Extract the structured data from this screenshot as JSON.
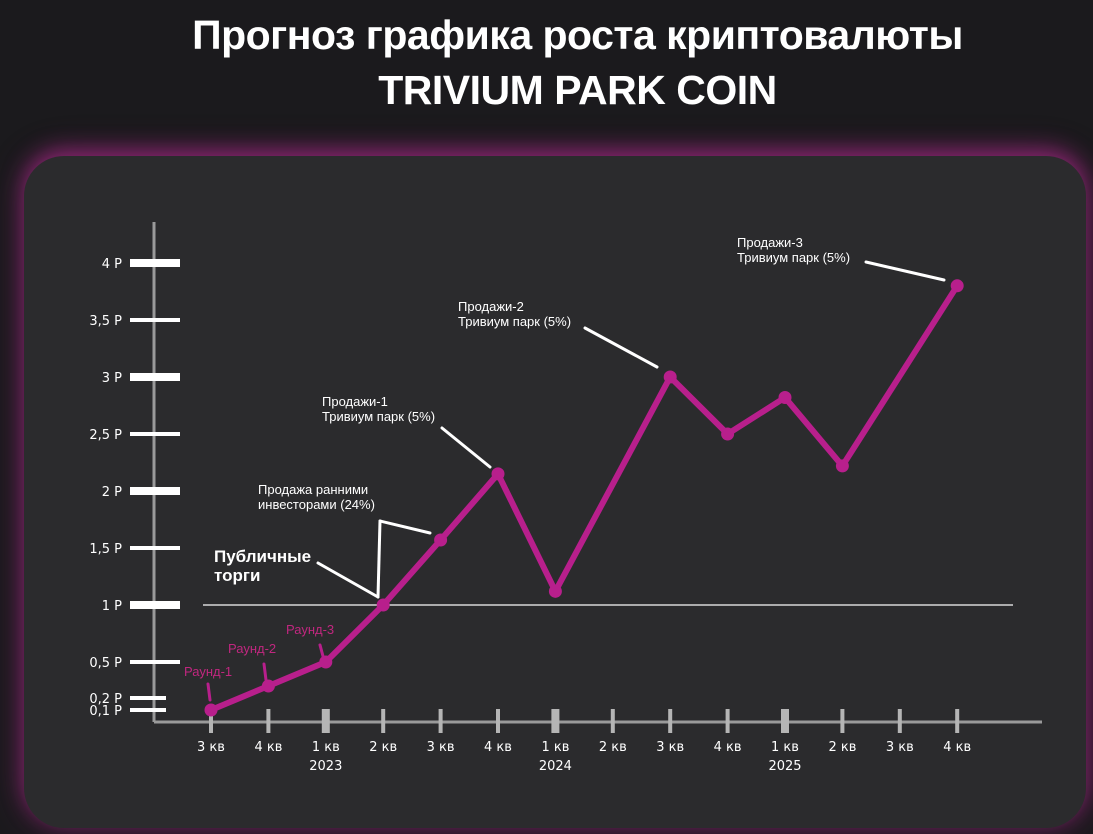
{
  "title_line1": "Прогноз графика роста криптовалюты",
  "title_line2": "TRIVIUM PARK COIN",
  "colors": {
    "line": "#b81f8c",
    "axis": "#9a9a9a",
    "panel": "#2b2b2d",
    "background": "#1b1a1d",
    "glow": "#d630aa"
  },
  "chart_data": {
    "type": "line",
    "title": "Прогноз графика роста криптовалюты TRIVIUM PARK COIN",
    "y_ticks": [
      {
        "value": 0.1,
        "label": "0,1 Р"
      },
      {
        "value": 0.2,
        "label": "0,2 Р"
      },
      {
        "value": 0.5,
        "label": "0,5 Р"
      },
      {
        "value": 1,
        "label": "1 Р"
      },
      {
        "value": 1.5,
        "label": "1,5 Р"
      },
      {
        "value": 2,
        "label": "2 Р"
      },
      {
        "value": 2.5,
        "label": "2,5 Р"
      },
      {
        "value": 3,
        "label": "3 Р"
      },
      {
        "value": 3.5,
        "label": "3,5 Р"
      },
      {
        "value": 4,
        "label": "4 Р"
      }
    ],
    "categories": [
      "3 кв",
      "4 кв",
      "1 кв",
      "2 кв",
      "3 кв",
      "4 кв",
      "1 кв",
      "2 кв",
      "3 кв",
      "4 кв",
      "1 кв",
      "2 кв",
      "3 кв",
      "4 кв"
    ],
    "years": [
      {
        "label": "2023",
        "category_index": 2
      },
      {
        "label": "2024",
        "category_index": 6
      },
      {
        "label": "2025",
        "category_index": 10
      }
    ],
    "points": [
      {
        "category_index": 0,
        "value": 0.1
      },
      {
        "category_index": 1,
        "value": 0.3
      },
      {
        "category_index": 2,
        "value": 0.5
      },
      {
        "category_index": 3,
        "value": 1.0
      },
      {
        "category_index": 4,
        "value": 1.57
      },
      {
        "category_index": 5,
        "value": 2.15
      },
      {
        "category_index": 6,
        "value": 1.12
      },
      {
        "category_index": 8,
        "value": 3.0
      },
      {
        "category_index": 9,
        "value": 2.5
      },
      {
        "category_index": 10,
        "value": 2.82
      },
      {
        "category_index": 11,
        "value": 2.22
      },
      {
        "category_index": 13,
        "value": 3.8
      }
    ],
    "reference_line": {
      "value": 1
    },
    "ylim": [
      0,
      4
    ],
    "annotations": [
      {
        "lines": [
          "Раунд-1"
        ],
        "style": "round"
      },
      {
        "lines": [
          "Раунд-2"
        ],
        "style": "round"
      },
      {
        "lines": [
          "Раунд-3"
        ],
        "style": "round"
      },
      {
        "lines": [
          "Публичные",
          "торги"
        ],
        "style": "big"
      },
      {
        "lines": [
          "Продажа ранними",
          "инвесторами (24%)"
        ],
        "style": "normal"
      },
      {
        "lines": [
          "Продажи-1",
          "Тривиум парк (5%)"
        ],
        "style": "normal"
      },
      {
        "lines": [
          "Продажи-2",
          "Тривиум парк (5%)"
        ],
        "style": "normal"
      },
      {
        "lines": [
          "Продажи-3",
          "Тривиум парк (5%)"
        ],
        "style": "normal"
      }
    ]
  }
}
